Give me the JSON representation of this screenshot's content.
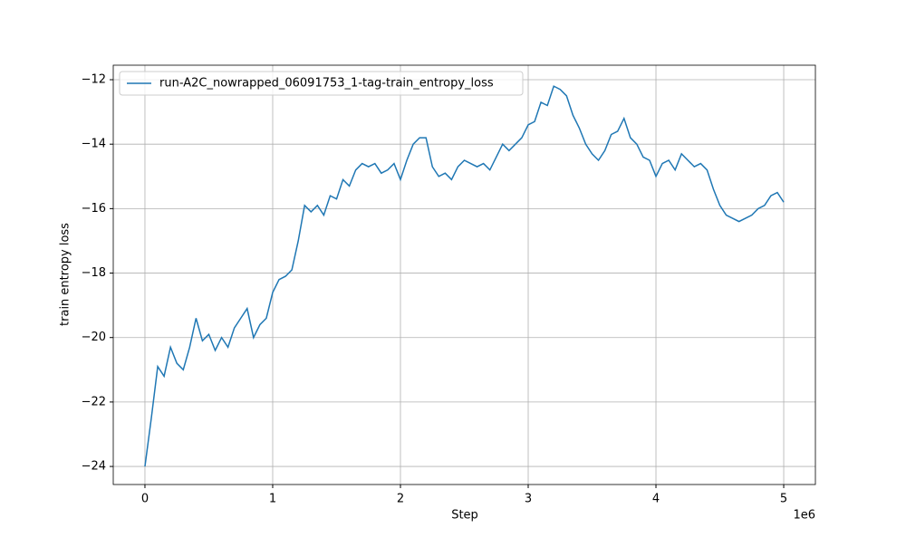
{
  "chart_data": {
    "type": "line",
    "xlabel": "Step",
    "ylabel": "train entropy loss",
    "x_offset_text": "1e6",
    "x": [
      0,
      50000,
      100000,
      150000,
      200000,
      250000,
      300000,
      350000,
      400000,
      450000,
      500000,
      550000,
      600000,
      650000,
      700000,
      750000,
      800000,
      850000,
      900000,
      950000,
      1000000,
      1050000,
      1100000,
      1150000,
      1200000,
      1250000,
      1300000,
      1350000,
      1400000,
      1450000,
      1500000,
      1550000,
      1600000,
      1650000,
      1700000,
      1750000,
      1800000,
      1850000,
      1900000,
      1950000,
      2000000,
      2050000,
      2100000,
      2150000,
      2200000,
      2250000,
      2300000,
      2350000,
      2400000,
      2450000,
      2500000,
      2550000,
      2600000,
      2650000,
      2700000,
      2750000,
      2800000,
      2850000,
      2900000,
      2950000,
      3000000,
      3050000,
      3100000,
      3150000,
      3200000,
      3250000,
      3300000,
      3350000,
      3400000,
      3450000,
      3500000,
      3550000,
      3600000,
      3650000,
      3700000,
      3750000,
      3800000,
      3850000,
      3900000,
      3950000,
      4000000,
      4050000,
      4100000,
      4150000,
      4200000,
      4250000,
      4300000,
      4350000,
      4400000,
      4450000,
      4500000,
      4550000,
      4600000,
      4650000,
      4700000,
      4750000,
      4800000,
      4850000,
      4900000,
      4950000,
      5000000
    ],
    "series": [
      {
        "name": "run-A2C_nowrapped_06091753_1-tag-train_entropy_loss",
        "color": "#1f77b4",
        "values": [
          -24,
          -22.5,
          -20.9,
          -21.2,
          -20.3,
          -20.8,
          -21.0,
          -20.3,
          -19.4,
          -20.1,
          -19.9,
          -20.4,
          -20.0,
          -20.3,
          -19.7,
          -19.4,
          -19.1,
          -20.0,
          -19.6,
          -19.4,
          -18.6,
          -18.2,
          -18.1,
          -17.9,
          -17.0,
          -15.9,
          -16.1,
          -15.9,
          -16.2,
          -15.6,
          -15.7,
          -15.1,
          -15.3,
          -14.8,
          -14.6,
          -14.7,
          -14.6,
          -14.9,
          -14.8,
          -14.6,
          -15.1,
          -14.5,
          -14.0,
          -13.8,
          -13.8,
          -14.7,
          -15.0,
          -14.9,
          -15.1,
          -14.7,
          -14.5,
          -14.6,
          -14.7,
          -14.6,
          -14.8,
          -14.4,
          -14.0,
          -14.2,
          -14.0,
          -13.8,
          -13.4,
          -13.3,
          -12.7,
          -12.8,
          -12.2,
          -12.3,
          -12.5,
          -13.1,
          -13.5,
          -14.0,
          -14.3,
          -14.5,
          -14.2,
          -13.7,
          -13.6,
          -13.2,
          -13.8,
          -14.0,
          -14.4,
          -14.5,
          -15.0,
          -14.6,
          -14.5,
          -14.8,
          -14.3,
          -14.5,
          -14.7,
          -14.6,
          -14.8,
          -15.4,
          -15.9,
          -16.2,
          -16.3,
          -16.4,
          -16.3,
          -16.2,
          -16.0,
          -15.9,
          -15.6,
          -15.5,
          -15.8
        ]
      }
    ],
    "xlim": [
      -248000,
      5248000
    ],
    "xticks": [
      {
        "value": 0,
        "label": "0"
      },
      {
        "value": 1000000,
        "label": "1"
      },
      {
        "value": 2000000,
        "label": "2"
      },
      {
        "value": 3000000,
        "label": "3"
      },
      {
        "value": 4000000,
        "label": "4"
      },
      {
        "value": 5000000,
        "label": "5"
      }
    ],
    "ylim": [
      -24.56,
      -11.55
    ],
    "yticks": [
      {
        "value": -24,
        "label": "−24"
      },
      {
        "value": -22,
        "label": "−22"
      },
      {
        "value": -20,
        "label": "−20"
      },
      {
        "value": -18,
        "label": "−18"
      },
      {
        "value": -16,
        "label": "−16"
      },
      {
        "value": -14,
        "label": "−14"
      },
      {
        "value": -12,
        "label": "−12"
      }
    ],
    "grid": true,
    "legend": "upper left"
  }
}
